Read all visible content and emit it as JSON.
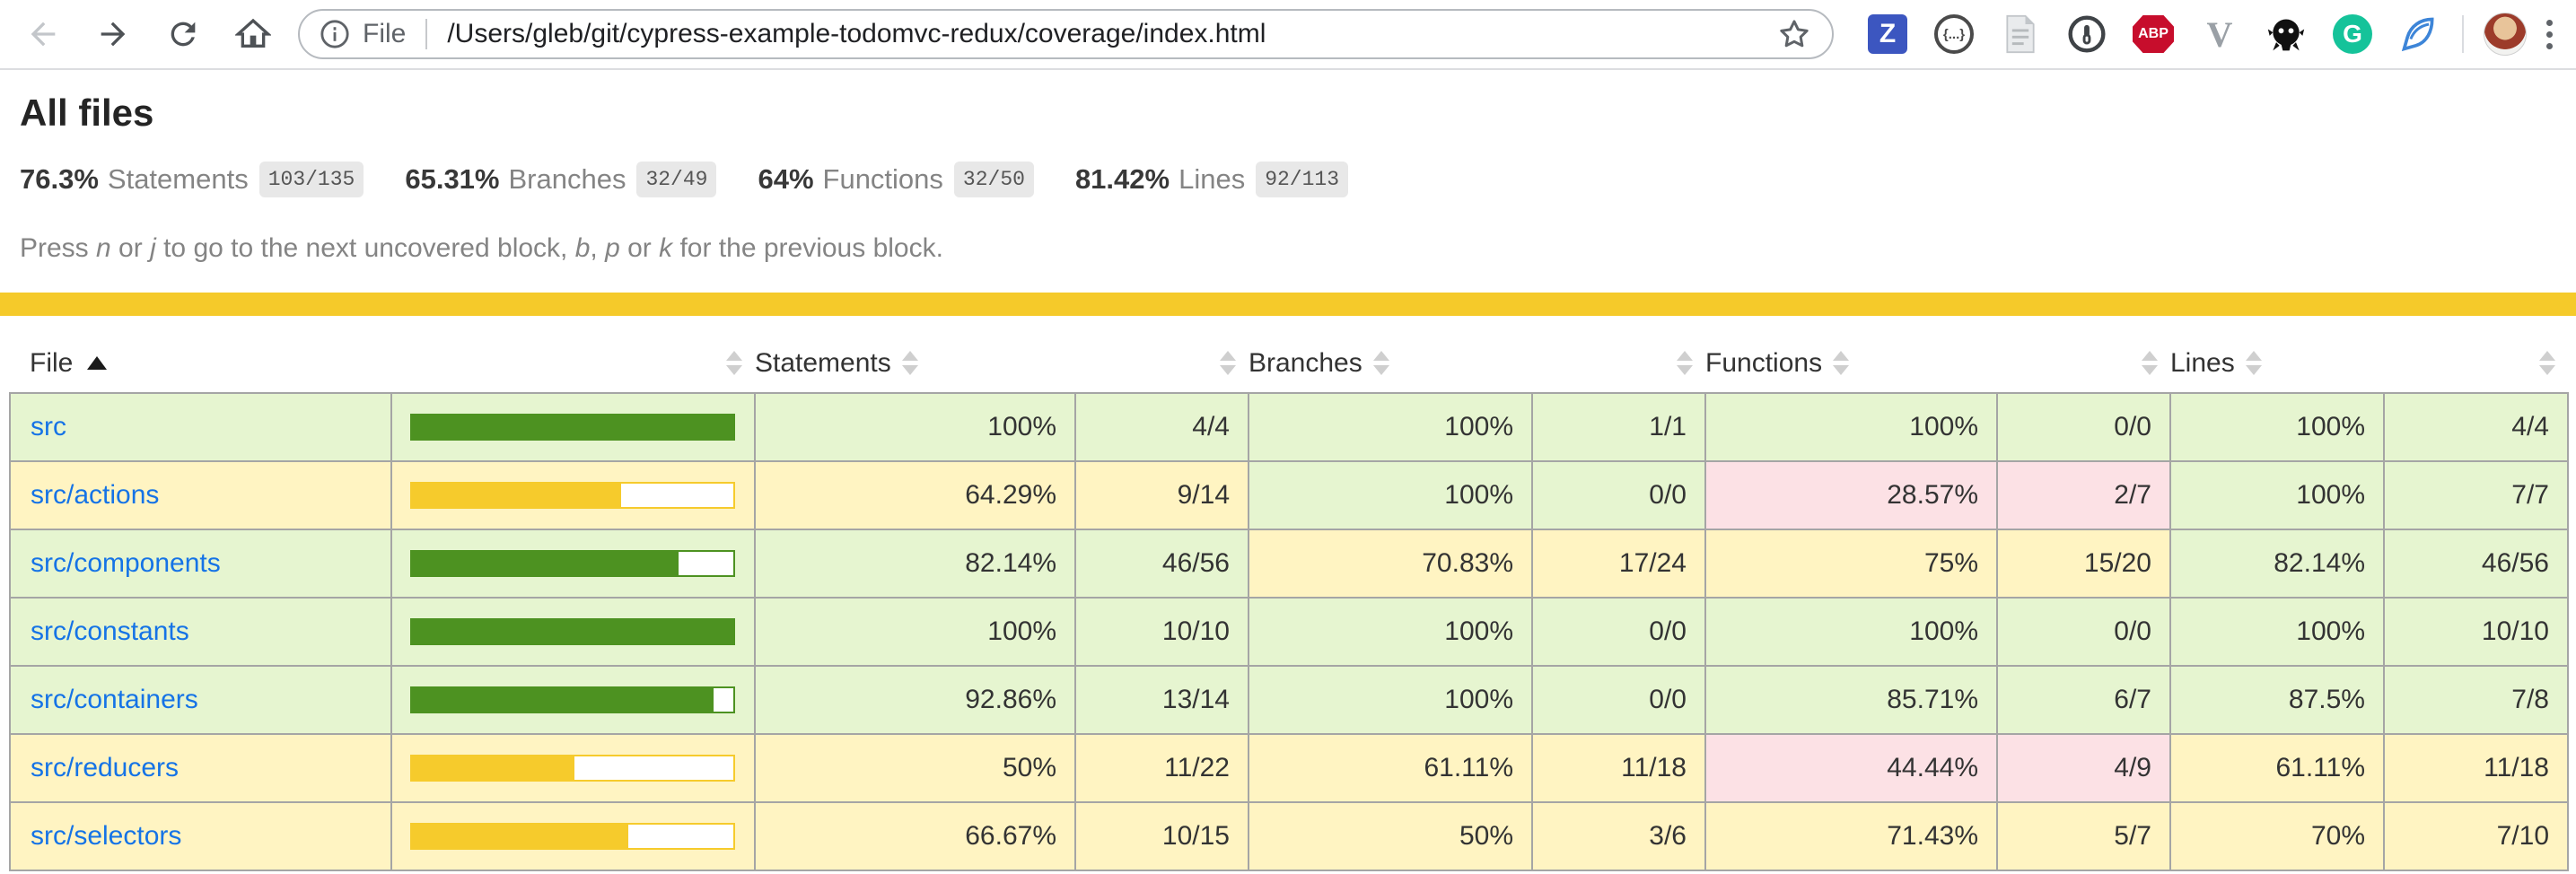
{
  "browser": {
    "scheme_label": "File",
    "url": "/Users/gleb/git/cypress-example-todomvc-redux/coverage/index.html",
    "extensions": {
      "zotero_label": "Z",
      "json_viewer_label": "{...}",
      "adblock_label": "ABP",
      "vue_label": "V",
      "grammarly_label": "G"
    }
  },
  "page": {
    "title": "All files",
    "stats": [
      {
        "pct": "76.3%",
        "label": "Statements",
        "fraction": "103/135"
      },
      {
        "pct": "65.31%",
        "label": "Branches",
        "fraction": "32/49"
      },
      {
        "pct": "64%",
        "label": "Functions",
        "fraction": "32/50"
      },
      {
        "pct": "81.42%",
        "label": "Lines",
        "fraction": "92/113"
      }
    ],
    "hint_segments": [
      {
        "t": "Press "
      },
      {
        "t": "n",
        "i": true
      },
      {
        "t": " or "
      },
      {
        "t": "j",
        "i": true
      },
      {
        "t": " to go to the next uncovered block, "
      },
      {
        "t": "b",
        "i": true
      },
      {
        "t": ", "
      },
      {
        "t": "p",
        "i": true
      },
      {
        "t": " or "
      },
      {
        "t": "k",
        "i": true
      },
      {
        "t": " for the previous block."
      }
    ]
  },
  "colors": {
    "high_bg": "#e6f5d0",
    "medium_bg": "#fff4c2",
    "low_bg": "#fce1e5",
    "fill_high": "#4d9221",
    "fill_medium": "#f6cb2c",
    "status_line": "#f5ca2a",
    "link": "#1573e6"
  },
  "table": {
    "columns": {
      "file": "File",
      "statements": "Statements",
      "branches": "Branches",
      "functions": "Functions",
      "lines": "Lines"
    },
    "rows": [
      {
        "file": "src",
        "row_status": "high",
        "bar_pct": 100,
        "statements": {
          "pct": "100%",
          "fraction": "4/4",
          "status": "high"
        },
        "branches": {
          "pct": "100%",
          "fraction": "1/1",
          "status": "high"
        },
        "functions": {
          "pct": "100%",
          "fraction": "0/0",
          "status": "high"
        },
        "lines": {
          "pct": "100%",
          "fraction": "4/4",
          "status": "high"
        }
      },
      {
        "file": "src/actions",
        "row_status": "medium",
        "bar_pct": 64.29,
        "statements": {
          "pct": "64.29%",
          "fraction": "9/14",
          "status": "medium"
        },
        "branches": {
          "pct": "100%",
          "fraction": "0/0",
          "status": "high"
        },
        "functions": {
          "pct": "28.57%",
          "fraction": "2/7",
          "status": "low"
        },
        "lines": {
          "pct": "100%",
          "fraction": "7/7",
          "status": "high"
        }
      },
      {
        "file": "src/components",
        "row_status": "high",
        "bar_pct": 82.14,
        "statements": {
          "pct": "82.14%",
          "fraction": "46/56",
          "status": "high"
        },
        "branches": {
          "pct": "70.83%",
          "fraction": "17/24",
          "status": "medium"
        },
        "functions": {
          "pct": "75%",
          "fraction": "15/20",
          "status": "medium"
        },
        "lines": {
          "pct": "82.14%",
          "fraction": "46/56",
          "status": "high"
        }
      },
      {
        "file": "src/constants",
        "row_status": "high",
        "bar_pct": 100,
        "statements": {
          "pct": "100%",
          "fraction": "10/10",
          "status": "high"
        },
        "branches": {
          "pct": "100%",
          "fraction": "0/0",
          "status": "high"
        },
        "functions": {
          "pct": "100%",
          "fraction": "0/0",
          "status": "high"
        },
        "lines": {
          "pct": "100%",
          "fraction": "10/10",
          "status": "high"
        }
      },
      {
        "file": "src/containers",
        "row_status": "high",
        "bar_pct": 92.86,
        "statements": {
          "pct": "92.86%",
          "fraction": "13/14",
          "status": "high"
        },
        "branches": {
          "pct": "100%",
          "fraction": "0/0",
          "status": "high"
        },
        "functions": {
          "pct": "85.71%",
          "fraction": "6/7",
          "status": "high"
        },
        "lines": {
          "pct": "87.5%",
          "fraction": "7/8",
          "status": "high"
        }
      },
      {
        "file": "src/reducers",
        "row_status": "medium",
        "bar_pct": 50,
        "statements": {
          "pct": "50%",
          "fraction": "11/22",
          "status": "medium"
        },
        "branches": {
          "pct": "61.11%",
          "fraction": "11/18",
          "status": "medium"
        },
        "functions": {
          "pct": "44.44%",
          "fraction": "4/9",
          "status": "low"
        },
        "lines": {
          "pct": "61.11%",
          "fraction": "11/18",
          "status": "medium"
        }
      },
      {
        "file": "src/selectors",
        "row_status": "medium",
        "bar_pct": 66.67,
        "statements": {
          "pct": "66.67%",
          "fraction": "10/15",
          "status": "medium"
        },
        "branches": {
          "pct": "50%",
          "fraction": "3/6",
          "status": "medium"
        },
        "functions": {
          "pct": "71.43%",
          "fraction": "5/7",
          "status": "medium"
        },
        "lines": {
          "pct": "70%",
          "fraction": "7/10",
          "status": "medium"
        }
      }
    ]
  }
}
